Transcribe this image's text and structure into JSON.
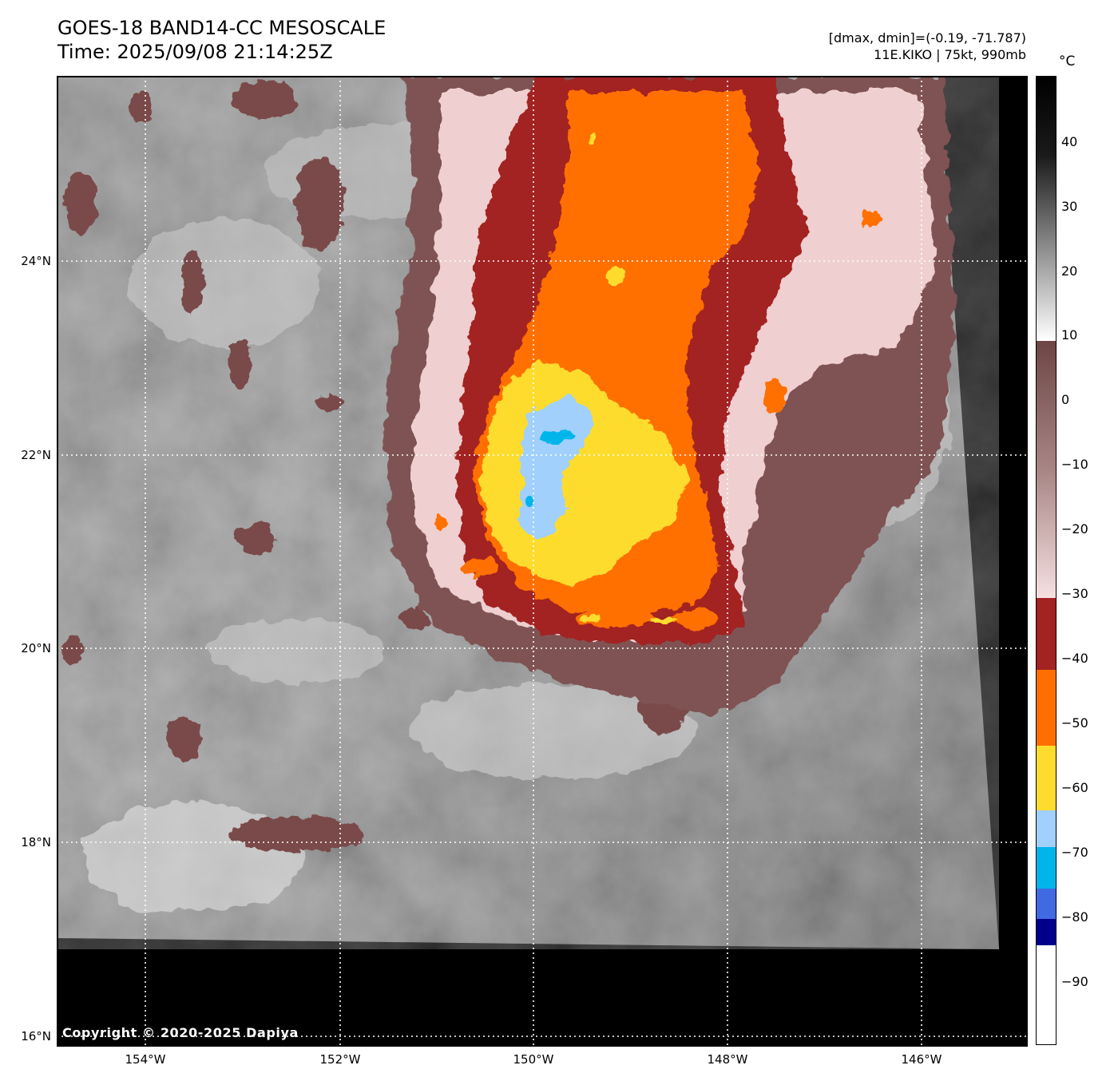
{
  "header": {
    "title_line1": "GOES-18 BAND14-CC MESOSCALE",
    "title_line2": "Time: 2025/09/08 21:14:25Z",
    "info_line1": "[dmax, dmin]=(-0.19, -71.787)",
    "info_line2": "11E.KIKO | 75kt, 990mb"
  },
  "axes": {
    "lat_labels": [
      "24°N",
      "22°N",
      "20°N",
      "18°N",
      "16°N"
    ],
    "lon_labels": [
      "154°W",
      "152°W",
      "150°W",
      "148°W",
      "146°W"
    ]
  },
  "colorbar": {
    "unit": "°C",
    "ticks": [
      "40",
      "30",
      "20",
      "10",
      "0",
      "−10",
      "−20",
      "−30",
      "−40",
      "−50",
      "−60",
      "−70",
      "−80",
      "−90"
    ],
    "colors": {
      "warm_black": "#000000",
      "gray_white": "#ffffff",
      "mauve": "#7a4a4a",
      "pink": "#f2d8d8",
      "dark_red": "#a32222",
      "orange": "#ff6f00",
      "yellow": "#fddc2e",
      "light_blue": "#a0d0fb",
      "cyan": "#00b5ea",
      "blue": "#4169e1",
      "navy": "#00008b",
      "white": "#ffffff"
    }
  },
  "footer": {
    "copyright": "Copyright © 2020-2025 Dapiya"
  }
}
